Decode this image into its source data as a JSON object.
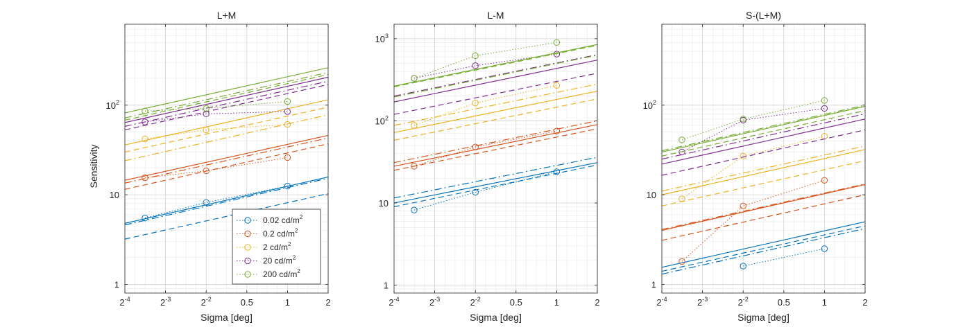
{
  "figure": {
    "ylabel": "Sensitivity",
    "xlabel": "Sigma [deg]"
  },
  "chart_data": [
    {
      "type": "line",
      "title": "L+M",
      "xlabel": "Sigma [deg]",
      "ylabel": "Sensitivity",
      "xscale": "log2",
      "yscale": "log10",
      "xlim": [
        0.0625,
        2
      ],
      "ylim": [
        0.8,
        800
      ],
      "xticks": [
        0.0625,
        0.125,
        0.25,
        0.5,
        1,
        2
      ],
      "xtick_labels": [
        [
          "2",
          "-4"
        ],
        [
          "2",
          "-3"
        ],
        [
          "2",
          "-2"
        ],
        [
          "0.5",
          ""
        ],
        [
          "1",
          ""
        ],
        [
          "2",
          ""
        ]
      ],
      "yticks": [
        1,
        10,
        100
      ],
      "ytick_labels": [
        "1",
        "10",
        "10^2"
      ],
      "grid": true,
      "legend": {
        "position": "bottom-right",
        "entries": [
          {
            "text": "0.02 cd/m",
            "sup": "2",
            "color": "#0072BD"
          },
          {
            "text": "0.2 cd/m",
            "sup": "2",
            "color": "#D95319"
          },
          {
            "text": "2 cd/m",
            "sup": "2",
            "color": "#EDB120"
          },
          {
            "text": "20 cd/m",
            "sup": "2",
            "color": "#7E2F8E"
          },
          {
            "text": "200 cd/m",
            "sup": "2",
            "color": "#77AC30"
          }
        ]
      },
      "series": [
        {
          "name": "0.02 cd/m2",
          "color": "#0072BD",
          "x": [
            0.088,
            0.25,
            1
          ],
          "y": [
            5.5,
            8.2,
            12.5
          ],
          "fit_solid": [
            4.8,
            15.8
          ],
          "fit_dashed": [
            3.2,
            10.3
          ],
          "fit_dashdot": [
            4.6,
            15.3
          ]
        },
        {
          "name": "0.2 cd/m2",
          "color": "#D95319",
          "x": [
            0.088,
            0.25,
            1
          ],
          "y": [
            15.5,
            18.5,
            26
          ],
          "fit_solid": [
            14.5,
            46
          ],
          "fit_dashed": [
            11.5,
            37
          ],
          "fit_dashdot": [
            13.5,
            43
          ]
        },
        {
          "name": "2 cd/m2",
          "color": "#EDB120",
          "x": [
            0.088,
            0.25,
            1
          ],
          "y": [
            42,
            53,
            61
          ],
          "fit_solid": [
            36,
            115
          ],
          "fit_dashed": [
            30,
            95
          ],
          "fit_dashdot": [
            24,
            78
          ]
        },
        {
          "name": "20 cd/m2",
          "color": "#7E2F8E",
          "x": [
            0.088,
            0.25,
            1
          ],
          "y": [
            65,
            80,
            85
          ],
          "fit_solid": [
            64,
            205
          ],
          "fit_dashed": [
            53,
            170
          ],
          "fit_dashdot": [
            58,
            185
          ]
        },
        {
          "name": "200 cd/m2",
          "color": "#77AC30",
          "x": [
            0.088,
            0.25,
            1
          ],
          "y": [
            86,
            92,
            110
          ],
          "fit_solid": [
            82,
            262
          ],
          "fit_dashed": [
            68,
            220
          ],
          "fit_dashdot": [
            72,
            232
          ]
        }
      ]
    },
    {
      "type": "line",
      "title": "L-M",
      "xlabel": "Sigma [deg]",
      "ylabel": "",
      "xscale": "log2",
      "yscale": "log10",
      "xlim": [
        0.0625,
        2
      ],
      "ylim": [
        0.8,
        1500
      ],
      "xticks": [
        0.0625,
        0.125,
        0.25,
        0.5,
        1,
        2
      ],
      "xtick_labels": [
        [
          "2",
          "-4"
        ],
        [
          "2",
          "-3"
        ],
        [
          "2",
          "-2"
        ],
        [
          "0.5",
          ""
        ],
        [
          "1",
          ""
        ],
        [
          "2",
          ""
        ]
      ],
      "yticks": [
        1,
        10,
        100,
        1000
      ],
      "ytick_labels": [
        "1",
        "10",
        "10^2",
        "10^3"
      ],
      "grid": true,
      "series": [
        {
          "name": "0.02 cd/m2",
          "color": "#0072BD",
          "x": [
            0.088,
            0.25,
            1
          ],
          "y": [
            8.2,
            13.5,
            24
          ],
          "fit_solid": [
            10,
            31
          ],
          "fit_dashed": [
            9,
            29
          ],
          "fit_dashdot": [
            11.5,
            36
          ]
        },
        {
          "name": "0.2 cd/m2",
          "color": "#D95319",
          "x": [
            0.088,
            0.25,
            1
          ],
          "y": [
            28,
            48,
            75
          ],
          "fit_solid": [
            28,
            90
          ],
          "fit_dashed": [
            25,
            80
          ],
          "fit_dashdot": [
            31,
            100
          ]
        },
        {
          "name": "2 cd/m2",
          "color": "#EDB120",
          "x": [
            0.088,
            0.25,
            1
          ],
          "y": [
            88,
            165,
            270
          ],
          "fit_solid": [
            72,
            230
          ],
          "fit_dashed": [
            58,
            185
          ],
          "fit_dashdot": [
            88,
            280
          ]
        },
        {
          "name": "20 cd/m2",
          "color": "#7E2F8E",
          "x": [
            0.088,
            0.25,
            1
          ],
          "y": [
            330,
            470,
            650
          ],
          "fit_solid": [
            170,
            550
          ],
          "fit_dashed": [
            120,
            380
          ],
          "fit_dashdot": [
            200,
            640
          ]
        },
        {
          "name": "200 cd/m2",
          "color": "#77AC30",
          "x": [
            0.088,
            0.25,
            1
          ],
          "y": [
            330,
            620,
            900
          ],
          "fit_solid": [
            265,
            850
          ],
          "fit_dashed": [
            260,
            830
          ],
          "fit_dashdot": [
            195,
            630
          ]
        }
      ]
    },
    {
      "type": "line",
      "title": "S-(L+M)",
      "xlabel": "Sigma [deg]",
      "ylabel": "",
      "xscale": "log2",
      "yscale": "log10",
      "xlim": [
        0.0625,
        2
      ],
      "ylim": [
        0.8,
        800
      ],
      "xticks": [
        0.0625,
        0.125,
        0.25,
        0.5,
        1,
        2
      ],
      "xtick_labels": [
        [
          "2",
          "-4"
        ],
        [
          "2",
          "-3"
        ],
        [
          "2",
          "-2"
        ],
        [
          "0.5",
          ""
        ],
        [
          "1",
          ""
        ],
        [
          "2",
          ""
        ]
      ],
      "yticks": [
        1,
        10,
        100
      ],
      "ytick_labels": [
        "1",
        "10",
        "10^2"
      ],
      "grid": true,
      "series": [
        {
          "name": "0.02 cd/m2",
          "color": "#0072BD",
          "x": [
            0.25,
            1
          ],
          "y": [
            1.6,
            2.5
          ],
          "fit_solid": [
            1.55,
            5
          ],
          "fit_dashed": [
            1.4,
            4.5
          ],
          "fit_dashdot": [
            1.3,
            4.2
          ]
        },
        {
          "name": "0.2 cd/m2",
          "color": "#D95319",
          "x": [
            0.088,
            0.25,
            1
          ],
          "y": [
            1.8,
            7.5,
            14.5
          ],
          "fit_solid": [
            4,
            13
          ],
          "fit_dashed": [
            3.1,
            10
          ],
          "fit_dashdot": [
            4.1,
            13.2
          ]
        },
        {
          "name": "2 cd/m2",
          "color": "#EDB120",
          "x": [
            0.088,
            0.25,
            1
          ],
          "y": [
            9,
            27,
            45
          ],
          "fit_solid": [
            10,
            32
          ],
          "fit_dashed": [
            7.5,
            24
          ],
          "fit_dashdot": [
            11,
            35
          ]
        },
        {
          "name": "20 cd/m2",
          "color": "#7E2F8E",
          "x": [
            0.088,
            0.25,
            1
          ],
          "y": [
            30,
            68,
            92
          ],
          "fit_solid": [
            22,
            70
          ],
          "fit_dashed": [
            16.5,
            53
          ],
          "fit_dashdot": [
            25,
            80
          ]
        },
        {
          "name": "200 cd/m2",
          "color": "#77AC30",
          "x": [
            0.088,
            0.25,
            1
          ],
          "y": [
            41,
            70,
            113
          ],
          "fit_solid": [
            30,
            97
          ],
          "fit_dashed": [
            27,
            87
          ],
          "fit_dashdot": [
            31,
            100
          ]
        }
      ]
    }
  ]
}
